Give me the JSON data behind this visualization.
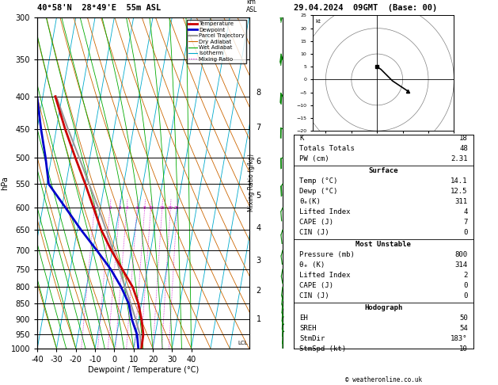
{
  "title_left": "40°58'N  28°49'E  55m ASL",
  "title_right": "29.04.2024  09GMT  (Base: 00)",
  "xlabel": "Dewpoint / Temperature (°C)",
  "ylabel_left": "hPa",
  "pressure_ticks_major": [
    300,
    350,
    400,
    450,
    500,
    550,
    600,
    650,
    700,
    750,
    800,
    850,
    900,
    950,
    1000
  ],
  "background_color": "#ffffff",
  "sounding_T": [
    14.1,
    13.8,
    11.5,
    8.5,
    4.0,
    -3.0,
    -10.5,
    -17.5,
    -23.5,
    -30.0,
    -37.5,
    -45.5,
    -53.5
  ],
  "sounding_P_T": [
    1000,
    950,
    900,
    850,
    800,
    750,
    700,
    650,
    600,
    550,
    500,
    450,
    400
  ],
  "sounding_Td": [
    12.5,
    10.5,
    6.5,
    3.5,
    -2.0,
    -9.0,
    -18.0,
    -28.0,
    -38.0,
    -49.0,
    -53.0,
    -58.0,
    -63.0
  ],
  "parcel_T": [
    14.1,
    12.0,
    8.5,
    4.5,
    0.0,
    -4.5,
    -9.5,
    -15.0,
    -21.0,
    -28.0,
    -35.5,
    -44.0,
    -53.0
  ],
  "parcel_P": [
    1000,
    950,
    900,
    850,
    800,
    750,
    700,
    650,
    600,
    550,
    500,
    450,
    400
  ],
  "color_temp": "#cc0000",
  "color_dew": "#0000cc",
  "color_parcel": "#999999",
  "color_dry_adiabat": "#cc6600",
  "color_wet_adiabat": "#00aa00",
  "color_isotherm": "#00aacc",
  "color_mixing": "#cc00cc",
  "km_ticks": [
    1,
    2,
    3,
    4,
    5,
    6,
    7,
    8
  ],
  "km_pressures": [
    898,
    808,
    724,
    644,
    572,
    505,
    446,
    393
  ],
  "mixing_ratio_vals": [
    1,
    2,
    3,
    4,
    6,
    8,
    10,
    15,
    20,
    25
  ],
  "stats": {
    "K": 18,
    "TT": 48,
    "PW": 2.31,
    "sfc_temp": 14.1,
    "sfc_dew": 12.5,
    "theta_e": 311,
    "lifted_idx": 4,
    "cape": 7,
    "cin": 0,
    "mu_pressure": 800,
    "mu_theta_e": 314,
    "mu_lifted": 2,
    "mu_cape": 0,
    "mu_cin": 0,
    "EH": 50,
    "SREH": 54,
    "StmDir": "183°",
    "StmSpd": 10
  },
  "legend_entries": [
    {
      "label": "Temperature",
      "color": "#cc0000",
      "lw": 2,
      "ls": "solid"
    },
    {
      "label": "Dewpoint",
      "color": "#0000cc",
      "lw": 2,
      "ls": "solid"
    },
    {
      "label": "Parcel Trajectory",
      "color": "#999999",
      "lw": 1.5,
      "ls": "solid"
    },
    {
      "label": "Dry Adiabat",
      "color": "#cc6600",
      "lw": 0.8,
      "ls": "solid"
    },
    {
      "label": "Wet Adiabat",
      "color": "#00aa00",
      "lw": 0.8,
      "ls": "solid"
    },
    {
      "label": "Isotherm",
      "color": "#00aacc",
      "lw": 0.8,
      "ls": "solid"
    },
    {
      "label": "Mixing Ratio",
      "color": "#cc00cc",
      "lw": 0.8,
      "ls": "dotted"
    }
  ],
  "wind_p": [
    1000,
    975,
    950,
    925,
    900,
    875,
    850,
    825,
    800,
    750,
    700,
    650,
    600,
    550,
    500,
    450,
    400,
    350,
    300
  ],
  "wind_spd": [
    5,
    5,
    8,
    8,
    10,
    10,
    10,
    10,
    12,
    12,
    15,
    15,
    18,
    20,
    22,
    28,
    32,
    38,
    42
  ],
  "wind_dir": [
    180,
    182,
    185,
    188,
    195,
    200,
    205,
    210,
    215,
    225,
    235,
    240,
    248,
    255,
    265,
    275,
    290,
    305,
    320
  ],
  "hodo_u": [
    0.0,
    1.5,
    3.0,
    4.5,
    6.0,
    7.5,
    9.0,
    10.5,
    12.0
  ],
  "hodo_v": [
    5.0,
    4.0,
    2.5,
    1.0,
    -0.5,
    -1.5,
    -2.5,
    -3.5,
    -4.5
  ],
  "lcl_p": 980
}
